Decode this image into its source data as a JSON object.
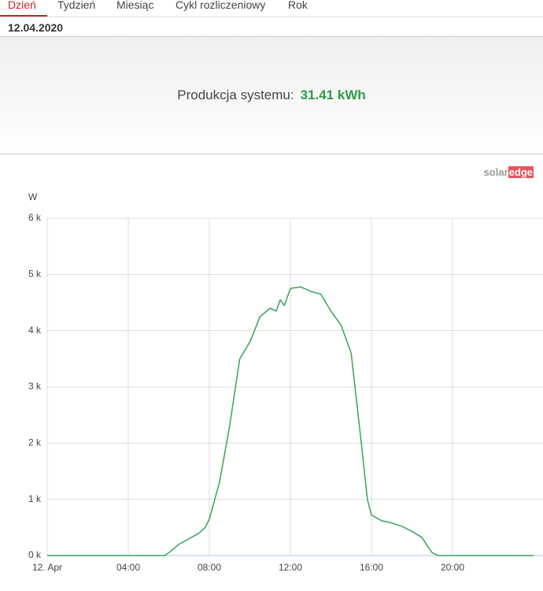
{
  "tabs": [
    "Dzień",
    "Tydzień",
    "Miesiąc",
    "Cykl rozliczeniowy",
    "Rok"
  ],
  "active_tab": 0,
  "date": "12.04.2020",
  "summary": {
    "label": "Produkcja systemu:",
    "value": "31.41 kWh"
  },
  "logo": {
    "part1": "solar",
    "part2": "edge"
  },
  "chart_data": {
    "type": "line",
    "y_label": "W",
    "xlim": [
      0,
      24
    ],
    "xticks": [
      {
        "value": 0,
        "label": "12. Apr"
      },
      {
        "value": 4,
        "label": "04:00"
      },
      {
        "value": 8,
        "label": "08:00"
      },
      {
        "value": 12,
        "label": "12:00"
      },
      {
        "value": 16,
        "label": "16:00"
      },
      {
        "value": 20,
        "label": "20:00"
      }
    ],
    "ylim": [
      0,
      6000
    ],
    "yticks": [
      {
        "value": 0,
        "label": "0 k"
      },
      {
        "value": 1000,
        "label": "1 k"
      },
      {
        "value": 2000,
        "label": "2 k"
      },
      {
        "value": 3000,
        "label": "3 k"
      },
      {
        "value": 4000,
        "label": "4 k"
      },
      {
        "value": 5000,
        "label": "5 k"
      },
      {
        "value": 6000,
        "label": "6 k"
      }
    ],
    "grid": true,
    "x": [
      0,
      5.8,
      6.0,
      6.5,
      7.0,
      7.5,
      7.8,
      8.0,
      8.5,
      9.0,
      9.5,
      10.0,
      10.5,
      11.0,
      11.3,
      11.5,
      11.7,
      12.0,
      12.5,
      13.0,
      13.5,
      14.0,
      14.5,
      15.0,
      15.5,
      15.8,
      16.0,
      16.5,
      17.0,
      17.5,
      18.0,
      18.5,
      18.8,
      19.0,
      19.3,
      24
    ],
    "series": [
      {
        "color": "#3aa35a",
        "values": [
          0,
          0,
          50,
          200,
          300,
          400,
          500,
          650,
          1300,
          2300,
          3500,
          3800,
          4250,
          4400,
          4350,
          4550,
          4450,
          4750,
          4780,
          4700,
          4650,
          4350,
          4100,
          3600,
          2000,
          1000,
          720,
          620,
          580,
          520,
          430,
          320,
          150,
          50,
          0,
          0
        ]
      }
    ]
  }
}
